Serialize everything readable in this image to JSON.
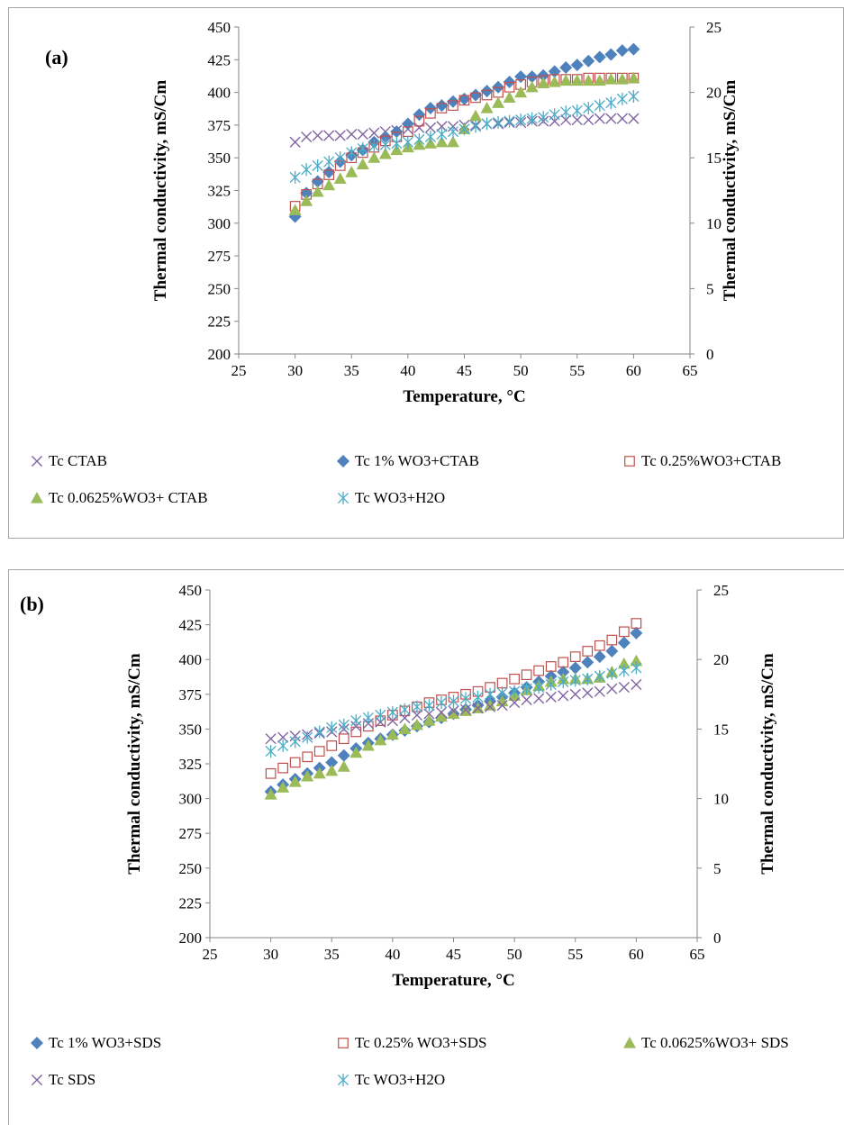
{
  "chart_data": [
    {
      "type": "scatter",
      "panel_label": "(a)",
      "xlabel": "Temperature, °C",
      "ylabel": "Thermal conductivity, mS/Cm",
      "y2label": "Thermal conductivity, mS/Cm",
      "xlim": [
        25,
        65
      ],
      "ylim": [
        200,
        450
      ],
      "y2lim": [
        0,
        25
      ],
      "xticks": [
        "25",
        "30",
        "35",
        "40",
        "45",
        "50",
        "55",
        "60",
        "65"
      ],
      "yticks": [
        "200",
        "225",
        "250",
        "275",
        "300",
        "325",
        "350",
        "375",
        "400",
        "425",
        "450"
      ],
      "y2ticks": [
        "0",
        "5",
        "10",
        "15",
        "20",
        "25"
      ],
      "grid": false,
      "legend_position": "bottom",
      "x": [
        30,
        31,
        32,
        33,
        34,
        35,
        36,
        37,
        38,
        39,
        40,
        41,
        42,
        43,
        44,
        45,
        46,
        47,
        48,
        49,
        50,
        51,
        52,
        53,
        54,
        55,
        56,
        57,
        58,
        59,
        60
      ],
      "series": [
        {
          "name": "Tc CTAB",
          "axis": "left",
          "marker": "x",
          "color": "#8064a2",
          "values": [
            362,
            366,
            367,
            367,
            367,
            368,
            368,
            369,
            370,
            371,
            372,
            373,
            373,
            374,
            374,
            375,
            375,
            376,
            376,
            377,
            377,
            378,
            378,
            378,
            379,
            379,
            379,
            380,
            380,
            380,
            380
          ]
        },
        {
          "name": "Tc 1% WO3+CTAB",
          "axis": "left",
          "marker": "diamond",
          "color": "#4f81bd",
          "values": [
            305,
            323,
            332,
            339,
            347,
            352,
            356,
            362,
            366,
            370,
            376,
            383,
            388,
            390,
            393,
            395,
            398,
            401,
            404,
            408,
            412,
            412,
            413,
            416,
            419,
            421,
            424,
            427,
            429,
            432,
            433
          ]
        },
        {
          "name": "Tc 0.25%WO3+CTAB",
          "axis": "left",
          "marker": "square-open",
          "color": "#c0504d",
          "values": [
            313,
            322,
            330,
            337,
            344,
            350,
            354,
            358,
            363,
            366,
            370,
            378,
            384,
            388,
            390,
            394,
            396,
            398,
            400,
            404,
            406,
            408,
            409,
            410,
            410,
            410,
            411,
            411,
            411,
            411,
            411
          ]
        },
        {
          "name": "Tc 0.0625%WO3+ CTAB",
          "axis": "left",
          "marker": "triangle",
          "color": "#9bbb59",
          "values": [
            310,
            317,
            324,
            329,
            334,
            339,
            345,
            350,
            353,
            356,
            358,
            360,
            361,
            362,
            362,
            372,
            382,
            388,
            392,
            396,
            400,
            404,
            407,
            408,
            409,
            409,
            409,
            409,
            410,
            410,
            411
          ]
        },
        {
          "name": "Tc WO3+H2O",
          "axis": "left",
          "marker": "asterisk",
          "color": "#4bacc6",
          "values": [
            335,
            341,
            344,
            347,
            350,
            354,
            357,
            359,
            360,
            361,
            362,
            364,
            366,
            368,
            370,
            372,
            374,
            376,
            377,
            378,
            379,
            380,
            381,
            383,
            385,
            386,
            388,
            390,
            392,
            395,
            397
          ]
        }
      ]
    },
    {
      "type": "scatter",
      "panel_label": "(b)",
      "xlabel": "Temperature, °C",
      "ylabel": "Thermal conductivity, mS/Cm",
      "y2label": "Thermal conductivity, mS/Cm",
      "xlim": [
        25,
        65
      ],
      "ylim": [
        200,
        450
      ],
      "y2lim": [
        0,
        25
      ],
      "xticks": [
        "25",
        "30",
        "35",
        "40",
        "45",
        "50",
        "55",
        "60",
        "65"
      ],
      "yticks": [
        "200",
        "225",
        "250",
        "275",
        "300",
        "325",
        "350",
        "375",
        "400",
        "425",
        "450"
      ],
      "y2ticks": [
        "0",
        "5",
        "10",
        "15",
        "20",
        "25"
      ],
      "grid": false,
      "legend_position": "bottom",
      "x": [
        30,
        31,
        32,
        33,
        34,
        35,
        36,
        37,
        38,
        39,
        40,
        41,
        42,
        43,
        44,
        45,
        46,
        47,
        48,
        49,
        50,
        51,
        52,
        53,
        54,
        55,
        56,
        57,
        58,
        59,
        60
      ],
      "series": [
        {
          "name": "Tc 1% WO3+SDS",
          "axis": "left",
          "marker": "diamond",
          "color": "#4f81bd",
          "values": [
            305,
            310,
            314,
            318,
            322,
            326,
            331,
            336,
            340,
            343,
            346,
            349,
            352,
            355,
            358,
            361,
            364,
            367,
            370,
            373,
            376,
            380,
            384,
            388,
            391,
            394,
            398,
            402,
            406,
            412,
            419
          ]
        },
        {
          "name": "Tc 0.25% WO3+SDS",
          "axis": "left",
          "marker": "square-open",
          "color": "#c0504d",
          "values": [
            318,
            322,
            326,
            330,
            334,
            338,
            343,
            348,
            352,
            356,
            360,
            363,
            366,
            369,
            371,
            373,
            375,
            377,
            380,
            383,
            386,
            389,
            392,
            395,
            398,
            402,
            406,
            410,
            414,
            420,
            426
          ]
        },
        {
          "name": "Tc 0.0625%WO3+ SDS",
          "axis": "left",
          "marker": "triangle",
          "color": "#9bbb59",
          "values": [
            303,
            308,
            312,
            316,
            318,
            320,
            323,
            333,
            338,
            342,
            346,
            350,
            353,
            356,
            359,
            361,
            363,
            365,
            367,
            370,
            374,
            378,
            381,
            384,
            386,
            386,
            386,
            387,
            391,
            397,
            399
          ]
        },
        {
          "name": "Tc SDS",
          "axis": "left",
          "marker": "x",
          "color": "#8064a2",
          "values": [
            343,
            344,
            345,
            346,
            347,
            348,
            350,
            352,
            354,
            355,
            356,
            358,
            360,
            361,
            362,
            363,
            364,
            365,
            366,
            367,
            369,
            371,
            372,
            373,
            374,
            375,
            376,
            377,
            379,
            380,
            382
          ]
        },
        {
          "name": "Tc WO3+H2O",
          "axis": "left",
          "marker": "asterisk",
          "color": "#4bacc6",
          "values": [
            334,
            338,
            341,
            344,
            348,
            351,
            353,
            356,
            358,
            360,
            362,
            364,
            366,
            367,
            369,
            370,
            372,
            373,
            375,
            376,
            377,
            379,
            380,
            382,
            384,
            385,
            386,
            388,
            390,
            392,
            394
          ]
        }
      ]
    }
  ]
}
